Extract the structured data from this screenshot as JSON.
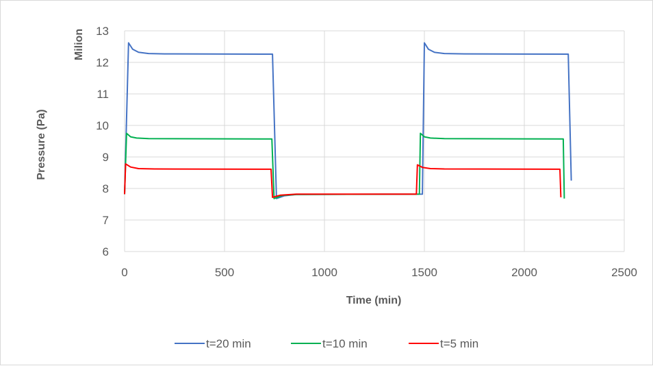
{
  "chart_data": {
    "type": "line",
    "title": "",
    "xlabel": "Time (min)",
    "ylabel": "Pressure (Pa)",
    "yunit": "Milion",
    "xlim": [
      0,
      2500
    ],
    "ylim": [
      6,
      13
    ],
    "xticks": [
      0,
      500,
      1000,
      1500,
      2000,
      2500
    ],
    "yticks": [
      6,
      7,
      8,
      9,
      10,
      11,
      12,
      13
    ],
    "grid": true,
    "legend_position": "bottom",
    "series": [
      {
        "name": "t=20 min",
        "color": "#4472C4",
        "points": [
          [
            0,
            7.82
          ],
          [
            20,
            12.62
          ],
          [
            40,
            12.42
          ],
          [
            70,
            12.32
          ],
          [
            120,
            12.28
          ],
          [
            200,
            12.27
          ],
          [
            740,
            12.26
          ],
          [
            760,
            7.68
          ],
          [
            800,
            7.77
          ],
          [
            860,
            7.81
          ],
          [
            1490,
            7.82
          ],
          [
            1500,
            12.62
          ],
          [
            1520,
            12.42
          ],
          [
            1550,
            12.32
          ],
          [
            1600,
            12.28
          ],
          [
            1700,
            12.27
          ],
          [
            2220,
            12.26
          ],
          [
            2235,
            8.25
          ]
        ]
      },
      {
        "name": "t=10 min",
        "color": "#00B050",
        "points": [
          [
            0,
            7.82
          ],
          [
            10,
            9.75
          ],
          [
            30,
            9.64
          ],
          [
            60,
            9.6
          ],
          [
            120,
            9.58
          ],
          [
            737,
            9.57
          ],
          [
            748,
            7.68
          ],
          [
            790,
            7.78
          ],
          [
            860,
            7.81
          ],
          [
            1475,
            7.82
          ],
          [
            1480,
            9.75
          ],
          [
            1500,
            9.64
          ],
          [
            1530,
            9.6
          ],
          [
            1600,
            9.58
          ],
          [
            2195,
            9.57
          ],
          [
            2200,
            7.68
          ]
        ]
      },
      {
        "name": "t=5 min",
        "color": "#FF0000",
        "points": [
          [
            0,
            7.82
          ],
          [
            5,
            8.78
          ],
          [
            30,
            8.68
          ],
          [
            70,
            8.63
          ],
          [
            150,
            8.62
          ],
          [
            733,
            8.61
          ],
          [
            740,
            7.72
          ],
          [
            780,
            7.79
          ],
          [
            860,
            7.82
          ],
          [
            1460,
            7.82
          ],
          [
            1465,
            8.75
          ],
          [
            1490,
            8.67
          ],
          [
            1530,
            8.63
          ],
          [
            1600,
            8.62
          ],
          [
            2178,
            8.61
          ],
          [
            2183,
            7.72
          ]
        ]
      }
    ]
  }
}
